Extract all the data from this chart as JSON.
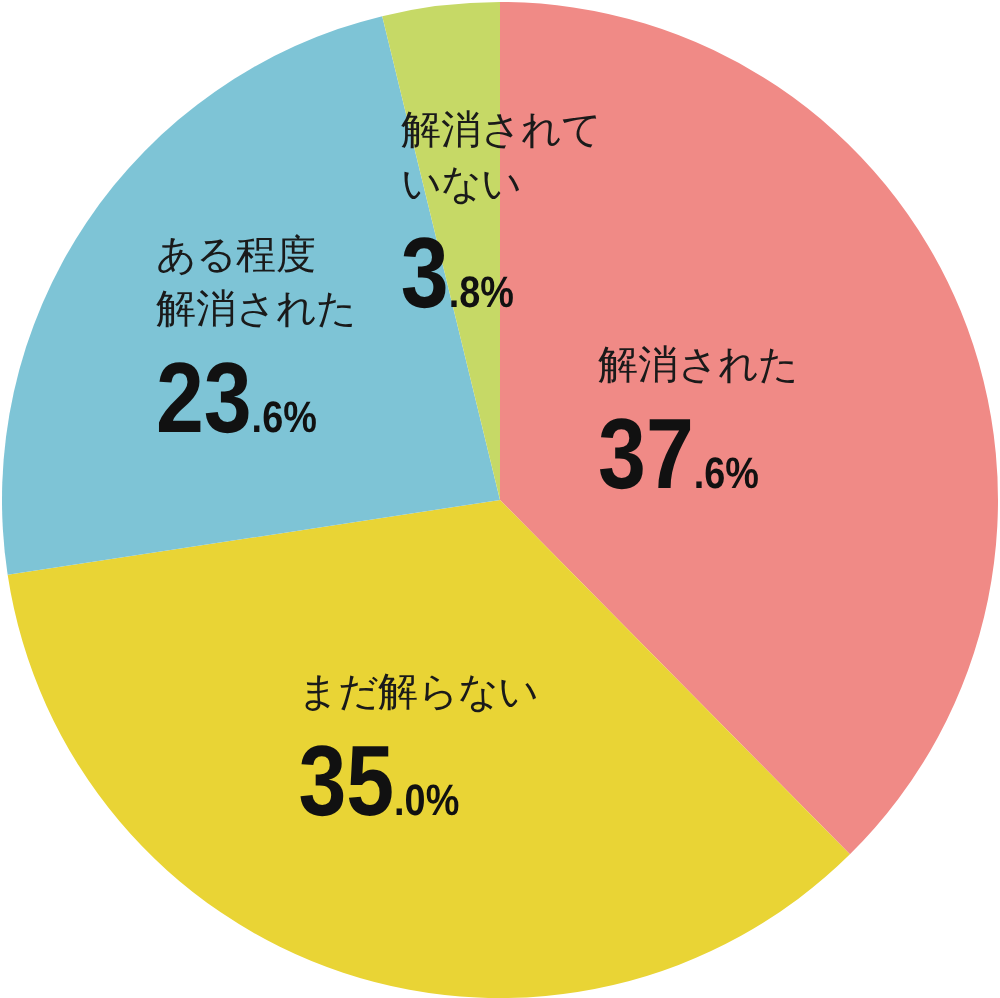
{
  "chart_data": {
    "type": "pie",
    "categories": [
      "解消された",
      "まだ解らない",
      "ある程度解消された",
      "解消されていない"
    ],
    "values": [
      37.6,
      35.0,
      23.6,
      3.8
    ],
    "colors": [
      "#f08a86",
      "#e9d435",
      "#7ec4d6",
      "#c6d966"
    ],
    "value_labels": [
      "37.6%",
      "35.0%",
      "23.6%",
      "3.8%"
    ]
  }
}
